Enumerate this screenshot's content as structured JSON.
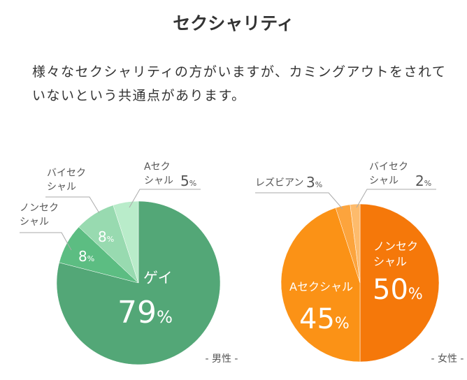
{
  "title": "セクシャリティ",
  "description": "様々なセクシャリティの方がいますが、カミングアウトをされていないという共通点があります。",
  "chart_data": [
    {
      "type": "pie",
      "caption": "- 男性 -",
      "start": "top, clockwise",
      "slices": [
        {
          "label": "ゲイ",
          "value": 79,
          "color": "#53a777"
        },
        {
          "label": "ノンセクシャル",
          "value": 8,
          "color": "#5cbd82"
        },
        {
          "label": "バイセクシャル",
          "value": 8,
          "color": "#98dab0"
        },
        {
          "label": "Aセクシャル",
          "value": 5,
          "color": "#b9ecca"
        }
      ]
    },
    {
      "type": "pie",
      "caption": "- 女性 -",
      "start": "top, clockwise",
      "slices": [
        {
          "label": "ノンセクシャル",
          "value": 50,
          "color": "#f5780a"
        },
        {
          "label": "Aセクシャル",
          "value": 45,
          "color": "#fb9216"
        },
        {
          "label": "レズビアン",
          "value": 3,
          "color": "#fca43d"
        },
        {
          "label": "バイセクシャル",
          "value": 2,
          "color": "#fdbb6c"
        }
      ]
    }
  ]
}
